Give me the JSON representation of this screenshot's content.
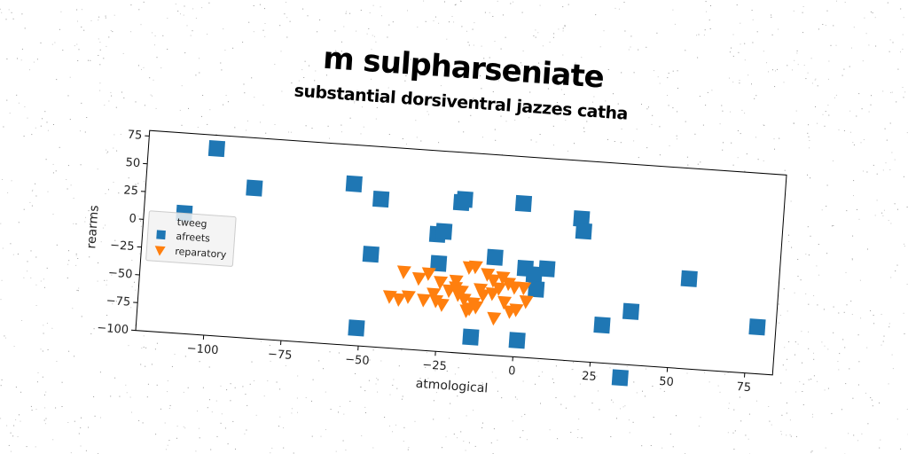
{
  "chart_data": {
    "type": "scatter",
    "title": "m sulpharseniate",
    "subtitle": "substantial dorsiventral jazzes catha",
    "xlabel": "atmological",
    "ylabel": "rearms",
    "xlim": [
      -122,
      84
    ],
    "ylim": [
      -100,
      80
    ],
    "x_ticks": [
      -100,
      -75,
      -50,
      -25,
      0,
      25,
      50,
      75
    ],
    "x_tick_labels": [
      "−100",
      "−75",
      "−50",
      "−25",
      "0",
      "25",
      "50",
      "75"
    ],
    "y_ticks": [
      75,
      50,
      25,
      0,
      -25,
      -50,
      -75,
      -100
    ],
    "y_tick_labels": [
      "75",
      "50",
      "25",
      "0",
      "−25",
      "−50",
      "−75",
      "−100"
    ],
    "grid": false,
    "rotation_deg": 4,
    "legend": {
      "title": "tweeg",
      "placement": "center-left",
      "entries": [
        "afreets",
        "reparatory"
      ]
    },
    "series": [
      {
        "name": "afreets",
        "marker": "square",
        "color": "#1f77b4",
        "points": [
          [
            -100,
            68
          ],
          [
            -87,
            35
          ],
          [
            -109,
            8
          ],
          [
            -55,
            45
          ],
          [
            -46,
            33
          ],
          [
            -20,
            35
          ],
          [
            -19,
            38
          ],
          [
            0,
            38
          ],
          [
            19,
            28
          ],
          [
            20,
            17
          ],
          [
            -27,
            5
          ],
          [
            -25,
            8
          ],
          [
            -48,
            -17
          ],
          [
            -26,
            -21
          ],
          [
            -8,
            -12
          ],
          [
            2,
            -20
          ],
          [
            9,
            -19
          ],
          [
            55,
            -19
          ],
          [
            5,
            -25
          ],
          [
            78,
            -58
          ],
          [
            37,
            -52
          ],
          [
            6,
            -38
          ],
          [
            28,
            -66
          ],
          [
            -14,
            -85
          ],
          [
            1,
            -85
          ],
          [
            -51,
            -84
          ],
          [
            35,
            -112
          ]
        ]
      },
      {
        "name": "reparatory",
        "marker": "triangle_down",
        "color": "#ff7f0e",
        "points": [
          [
            -37,
            -31
          ],
          [
            -32,
            -36
          ],
          [
            -29,
            -31
          ],
          [
            -25,
            -38
          ],
          [
            -20,
            -36
          ],
          [
            -16,
            -23
          ],
          [
            -14,
            -22
          ],
          [
            -10,
            -28
          ],
          [
            -8,
            -33
          ],
          [
            -5,
            -30
          ],
          [
            -3,
            -35
          ],
          [
            -1,
            -38
          ],
          [
            2,
            -38
          ],
          [
            -35,
            -53
          ],
          [
            -30,
            -55
          ],
          [
            -27,
            -49
          ],
          [
            -22,
            -45
          ],
          [
            -19,
            -48
          ],
          [
            -17,
            -52
          ],
          [
            -14,
            -55
          ],
          [
            -11,
            -47
          ],
          [
            -8,
            -45
          ],
          [
            -4,
            -52
          ],
          [
            -2,
            -60
          ],
          [
            -16,
            -62
          ],
          [
            -13,
            -58
          ],
          [
            -7,
            -67
          ],
          [
            -24,
            -58
          ],
          [
            -41,
            -54
          ],
          [
            -38,
            -56
          ],
          [
            -20,
            -42
          ],
          [
            -12,
            -42
          ],
          [
            0,
            -58
          ],
          [
            3,
            -50
          ],
          [
            -6,
            -40
          ],
          [
            -15,
            -60
          ],
          [
            -26,
            -55
          ],
          [
            -18,
            -45
          ]
        ]
      }
    ]
  }
}
